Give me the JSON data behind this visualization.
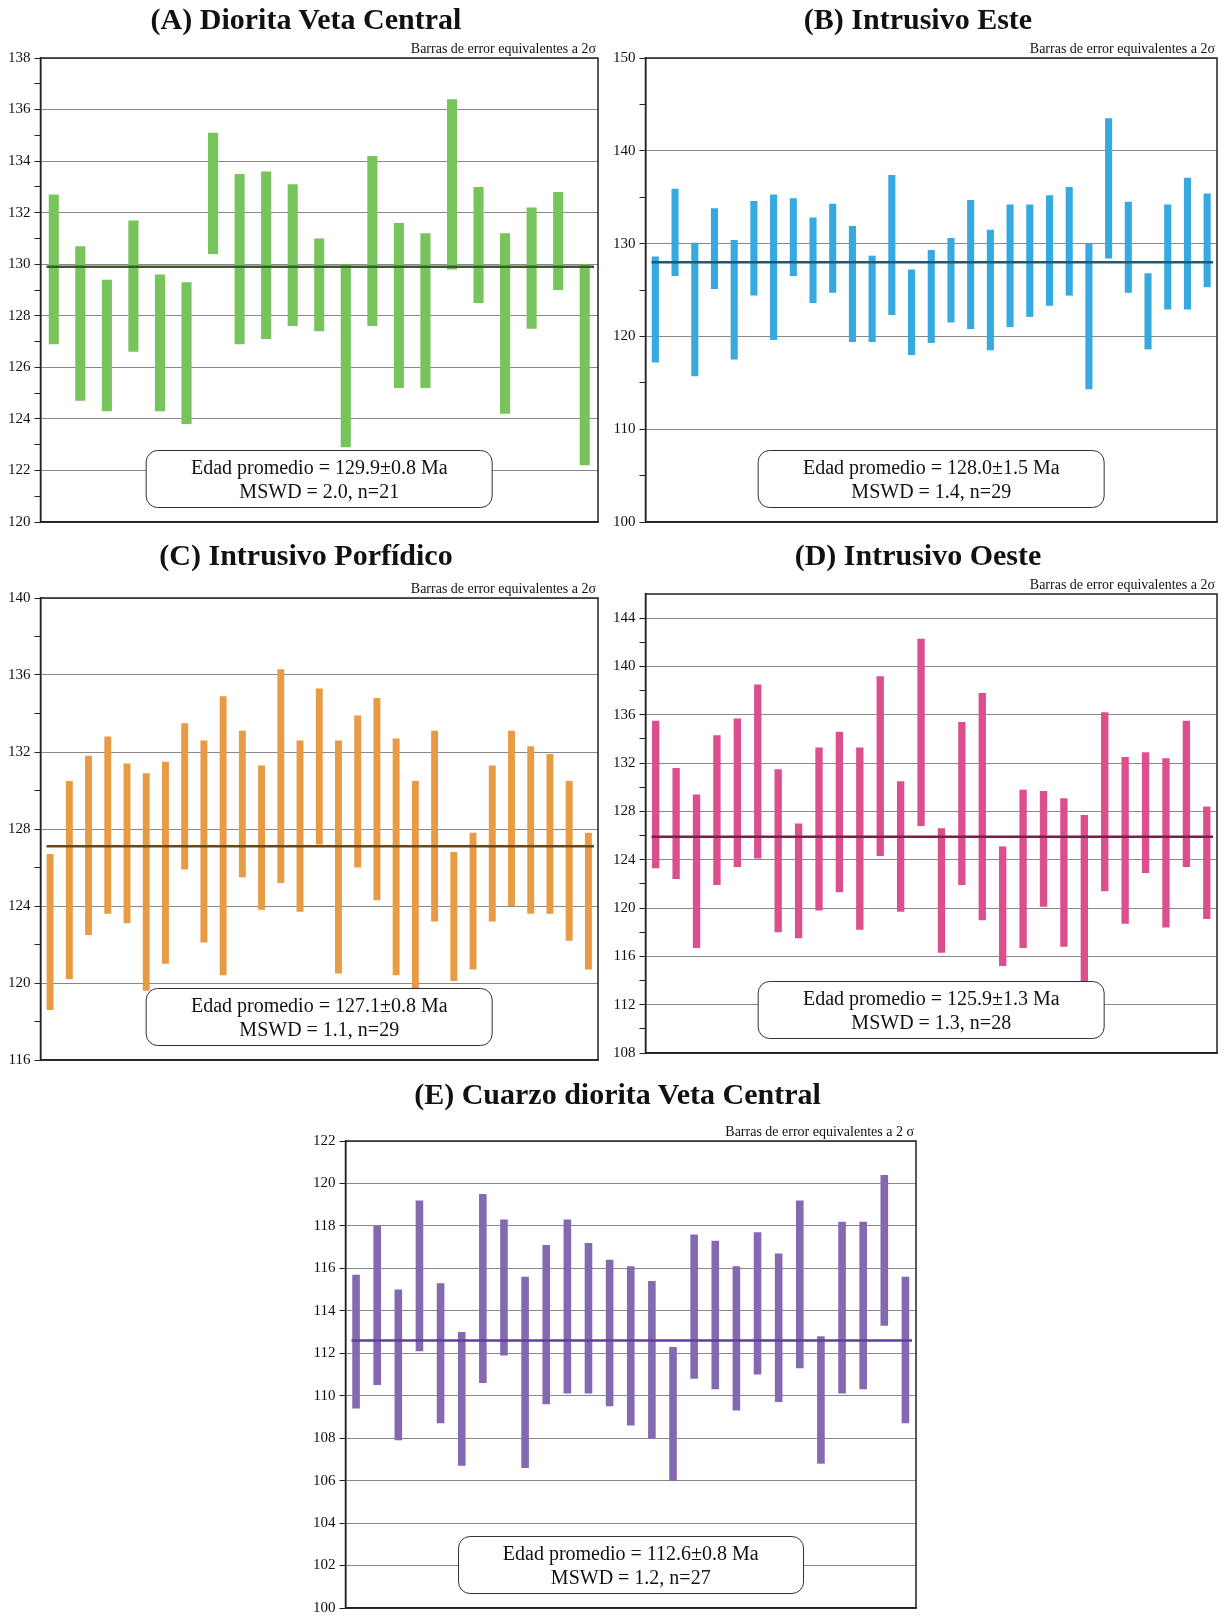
{
  "chart_data": [
    {
      "type": "bar",
      "title": "(A) Diorita Veta Central",
      "categories": [
        null,
        null,
        null,
        null,
        null,
        null,
        null,
        null,
        null,
        null,
        null,
        null,
        null,
        null,
        null,
        null,
        null,
        null,
        null,
        null,
        null
      ],
      "base": [
        126.9,
        124.7,
        124.3,
        126.6,
        124.3,
        123.8,
        130.4,
        126.9,
        127.1,
        127.6,
        127.4,
        122.9,
        127.6,
        125.2,
        125.2,
        129.8,
        128.5,
        124.2,
        127.5,
        129.0,
        122.2
      ],
      "values": [
        5.8,
        6.0,
        5.1,
        5.1,
        5.3,
        5.5,
        4.7,
        6.6,
        6.5,
        5.5,
        3.6,
        7.1,
        6.6,
        6.4,
        6.0,
        6.6,
        4.5,
        7.0,
        4.7,
        3.8,
        7.8
      ],
      "color": "#77c35c",
      "ylim": [
        120,
        138
      ],
      "yticks": [
        120,
        {
          "value": 121,
          "label": null
        },
        122,
        {
          "value": 123,
          "label": null
        },
        124,
        {
          "value": 125,
          "label": null
        },
        126,
        {
          "value": 127,
          "label": null
        },
        128,
        {
          "value": 129,
          "label": null
        },
        130,
        {
          "value": 131,
          "label": null
        },
        132,
        {
          "value": 133,
          "label": null
        },
        134,
        {
          "value": 135,
          "label": null
        },
        136,
        {
          "value": 137,
          "label": null
        },
        138
      ],
      "grid": "y",
      "tick_labels": "y",
      "ref_lines": [
        {
          "axis": "y",
          "value": 129.9,
          "color": "#3b5a2c"
        }
      ],
      "annotations": [
        "Barras de error equivalentes a 2σ",
        "Edad promedio = 129.9±0.8 Ma",
        "MSWD = 2.0, n=21"
      ]
    },
    {
      "type": "bar",
      "title": "(B) Intrusivo Este",
      "categories": [
        null,
        null,
        null,
        null,
        null,
        null,
        null,
        null,
        null,
        null,
        null,
        null,
        null,
        null,
        null,
        null,
        null,
        null,
        null,
        null,
        null,
        null,
        null,
        null,
        null,
        null,
        null,
        null,
        null
      ],
      "base": [
        117.2,
        126.5,
        115.7,
        125.1,
        117.5,
        124.4,
        119.6,
        126.5,
        123.6,
        124.7,
        119.4,
        119.4,
        122.3,
        118.0,
        119.3,
        121.5,
        120.8,
        118.5,
        121.0,
        122.1,
        123.3,
        124.4,
        114.3,
        128.4,
        124.7,
        118.6,
        122.9,
        122.9,
        125.3
      ],
      "values": [
        11.4,
        9.4,
        14.4,
        8.7,
        12.9,
        10.2,
        15.7,
        8.4,
        9.2,
        9.6,
        12.5,
        9.3,
        15.1,
        9.2,
        10.0,
        9.1,
        13.9,
        13.0,
        13.2,
        12.1,
        11.9,
        11.7,
        15.7,
        15.1,
        9.8,
        8.2,
        11.3,
        14.2,
        10.1
      ],
      "color": "#36a9e0",
      "ylim": [
        100,
        150
      ],
      "yticks": [
        100,
        {
          "value": 105,
          "label": null
        },
        110,
        {
          "value": 115,
          "label": null
        },
        120,
        {
          "value": 125,
          "label": null
        },
        130,
        {
          "value": 135,
          "label": null
        },
        140,
        {
          "value": 145,
          "label": null
        },
        150
      ],
      "grid": "y",
      "tick_labels": "y",
      "ref_lines": [
        {
          "axis": "y",
          "value": 128.0,
          "color": "#1d5a78"
        }
      ],
      "annotations": [
        "Barras de error equivalentes a 2σ",
        "Edad promedio = 128.0±1.5 Ma",
        "MSWD = 1.4, n=29"
      ]
    },
    {
      "type": "bar",
      "title": "(C) Intrusivo Porfídico",
      "categories": [
        null,
        null,
        null,
        null,
        null,
        null,
        null,
        null,
        null,
        null,
        null,
        null,
        null,
        null,
        null,
        null,
        null,
        null,
        null,
        null,
        null,
        null,
        null,
        null,
        null,
        null,
        null,
        null,
        null
      ],
      "base": [
        118.6,
        120.2,
        122.5,
        123.6,
        123.1,
        119.6,
        121.0,
        125.9,
        122.1,
        120.4,
        125.5,
        123.8,
        125.2,
        123.7,
        127.2,
        120.5,
        126.0,
        124.3,
        120.4,
        119.4,
        123.2,
        120.1,
        120.7,
        123.2,
        124.0,
        123.6,
        123.6,
        122.2,
        120.7
      ],
      "values": [
        8.1,
        10.3,
        9.3,
        9.2,
        8.3,
        11.3,
        10.5,
        7.6,
        10.5,
        14.5,
        7.6,
        7.5,
        11.1,
        8.9,
        8.1,
        12.1,
        7.9,
        10.5,
        12.3,
        11.1,
        9.9,
        6.7,
        7.1,
        8.1,
        9.1,
        8.7,
        8.3,
        8.3,
        7.1
      ],
      "color": "#e89a45",
      "ylim": [
        116,
        140
      ],
      "yticks": [
        116,
        {
          "value": 118,
          "label": null
        },
        120,
        {
          "value": 122,
          "label": null
        },
        124,
        {
          "value": 126,
          "label": null
        },
        128,
        {
          "value": 130,
          "label": null
        },
        132,
        {
          "value": 134,
          "label": null
        },
        136,
        {
          "value": 138,
          "label": null
        },
        140
      ],
      "grid": "y",
      "tick_labels": "y",
      "ref_lines": [
        {
          "axis": "y",
          "value": 127.1,
          "color": "#6b4818"
        }
      ],
      "annotations": [
        "Barras de error equivalentes a 2σ",
        "Edad promedio = 127.1±0.8 Ma",
        "MSWD = 1.1, n=29"
      ]
    },
    {
      "type": "bar",
      "title": "(D) Intrusivo Oeste",
      "categories": [
        null,
        null,
        null,
        null,
        null,
        null,
        null,
        null,
        null,
        null,
        null,
        null,
        null,
        null,
        null,
        null,
        null,
        null,
        null,
        null,
        null,
        null,
        null,
        null,
        null,
        null,
        null,
        null
      ],
      "base": [
        123.3,
        122.4,
        116.7,
        121.9,
        123.4,
        124.1,
        118.0,
        117.5,
        119.8,
        121.3,
        118.2,
        124.3,
        119.7,
        126.8,
        116.3,
        121.9,
        119.0,
        115.2,
        116.7,
        120.1,
        116.8,
        113.4,
        121.4,
        118.7,
        122.9,
        118.4,
        123.4,
        119.1
      ],
      "values": [
        12.2,
        9.2,
        12.7,
        12.4,
        12.3,
        14.4,
        13.5,
        9.5,
        13.5,
        13.3,
        15.1,
        14.9,
        10.8,
        15.5,
        10.3,
        13.5,
        18.8,
        9.9,
        13.1,
        9.6,
        12.3,
        14.3,
        14.8,
        13.8,
        10.0,
        14.0,
        12.1,
        9.3
      ],
      "color": "#dc4f8f",
      "ylim": [
        108,
        146
      ],
      "yticks": [
        108,
        {
          "value": 110,
          "label": null
        },
        112,
        {
          "value": 114,
          "label": null
        },
        116,
        {
          "value": 118,
          "label": null
        },
        120,
        {
          "value": 122,
          "label": null
        },
        124,
        {
          "value": 126,
          "label": null
        },
        128,
        {
          "value": 130,
          "label": null
        },
        132,
        {
          "value": 134,
          "label": null
        },
        136,
        {
          "value": 138,
          "label": null
        },
        140,
        {
          "value": 142,
          "label": null
        },
        144
      ],
      "grid": "y",
      "tick_labels": "y",
      "ref_lines": [
        {
          "axis": "y",
          "value": 125.9,
          "color": "#7a1f45"
        }
      ],
      "annotations": [
        "Barras de error equivalentes a 2σ",
        "Edad promedio = 125.9±1.3 Ma",
        "MSWD = 1.3, n=28"
      ]
    },
    {
      "type": "bar",
      "title": "(E) Cuarzo diorita Veta Central",
      "categories": [
        null,
        null,
        null,
        null,
        null,
        null,
        null,
        null,
        null,
        null,
        null,
        null,
        null,
        null,
        null,
        null,
        null,
        null,
        null,
        null,
        null,
        null,
        null,
        null,
        null,
        null,
        null
      ],
      "base": [
        109.4,
        110.5,
        107.9,
        112.1,
        108.7,
        106.7,
        110.6,
        111.9,
        106.6,
        109.6,
        110.1,
        110.1,
        109.5,
        108.6,
        108.0,
        106.0,
        110.8,
        110.3,
        109.3,
        111.0,
        109.7,
        111.3,
        106.8,
        110.1,
        110.3,
        113.3,
        108.7
      ],
      "values": [
        6.3,
        7.5,
        7.1,
        7.1,
        6.6,
        6.3,
        8.9,
        6.4,
        9.0,
        7.5,
        8.2,
        7.1,
        6.9,
        7.5,
        7.4,
        6.3,
        6.8,
        7.0,
        6.8,
        6.7,
        7.0,
        7.9,
        6.0,
        8.1,
        7.9,
        7.1,
        6.9
      ],
      "color": "#8469b0",
      "ylim": [
        100,
        122
      ],
      "yticks": [
        100,
        102,
        104,
        106,
        108,
        110,
        112,
        114,
        116,
        118,
        120,
        122
      ],
      "grid": "y",
      "tick_labels": "y",
      "ref_lines": [
        {
          "axis": "y",
          "value": 112.6,
          "color": "#5e3f9a"
        }
      ],
      "annotations": [
        "Barras de error equivalentes a 2 σ",
        "Edad promedio = 112.6±0.8 Ma",
        "MSWD = 1.2, n=27"
      ]
    }
  ]
}
